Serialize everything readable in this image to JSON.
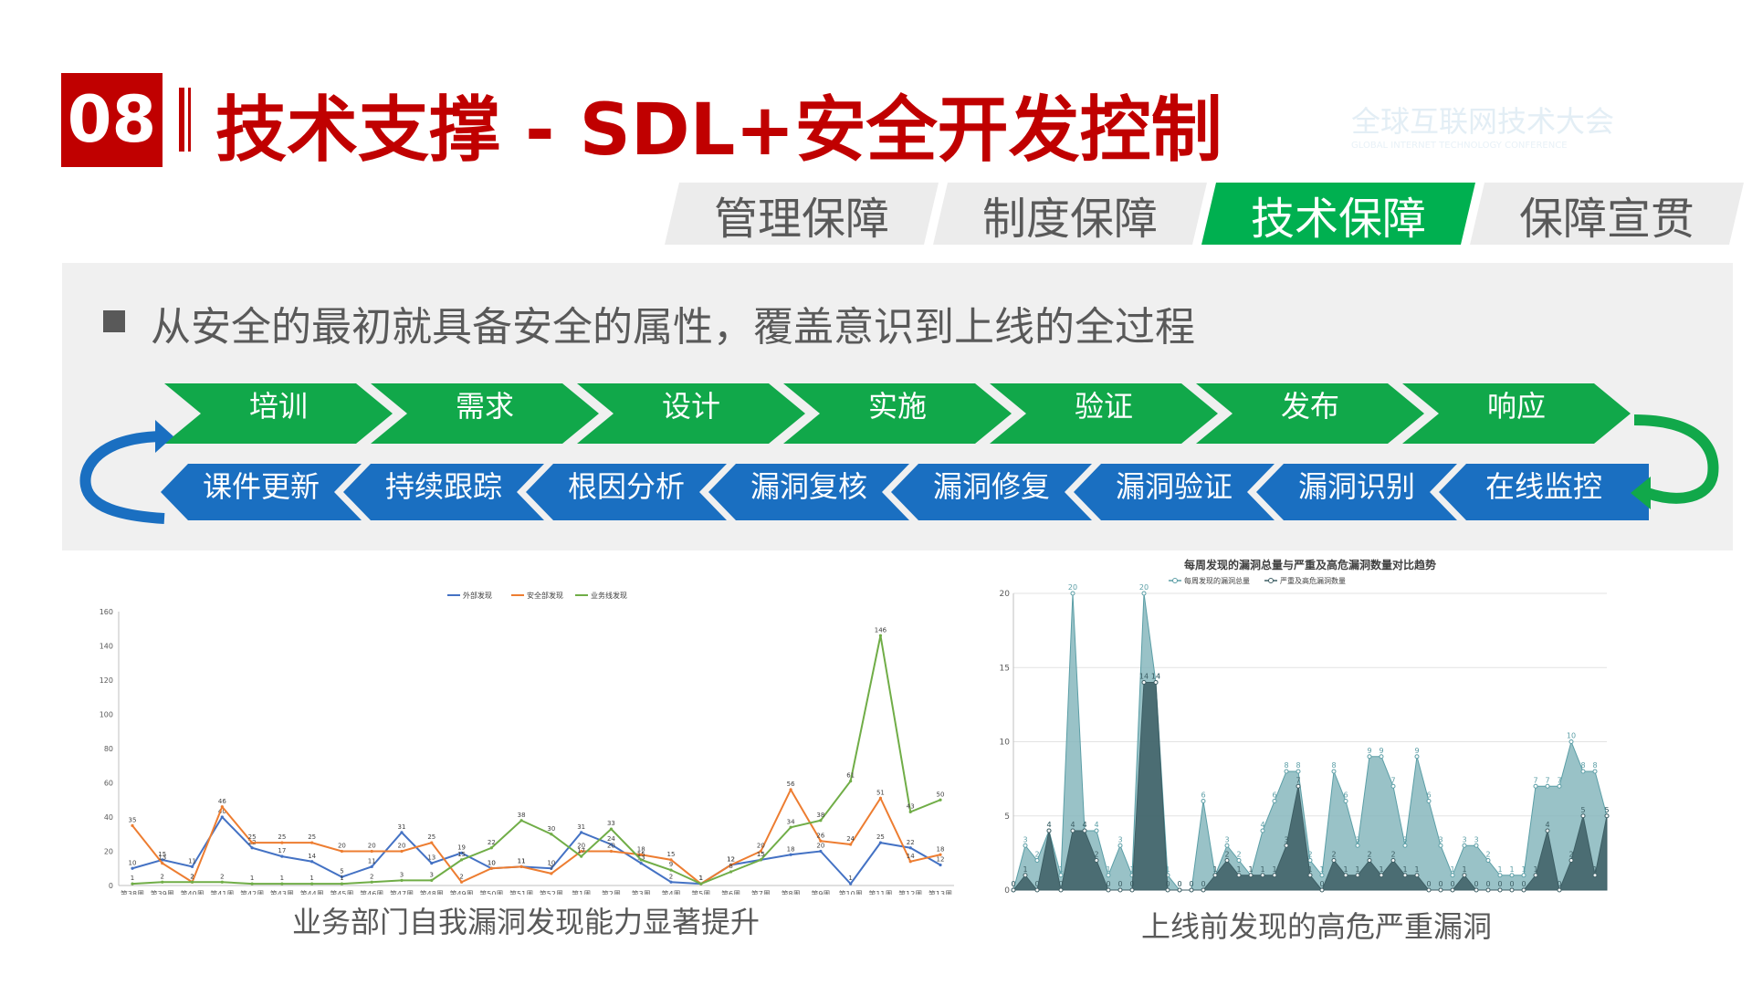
{
  "header": {
    "number": "08",
    "title": "技术支撑 - SDL+安全开发控制",
    "watermark": "全球互联网技术大会",
    "watermark_sub": "GLOBAL INTERNET TECHNOLOGY CONFERENCE"
  },
  "tabs": [
    {
      "label": "管理保障",
      "active": false
    },
    {
      "label": "制度保障",
      "active": false
    },
    {
      "label": "技术保障",
      "active": true
    },
    {
      "label": "保障宣贯",
      "active": false
    }
  ],
  "bullet": "从安全的最初就具备安全的属性，覆盖意识到上线的全过程",
  "flow_top": [
    "培训",
    "需求",
    "设计",
    "实施",
    "验证",
    "发布",
    "响应"
  ],
  "flow_bottom": [
    "课件更新",
    "持续跟踪",
    "根因分析",
    "漏洞复核",
    "漏洞修复",
    "漏洞验证",
    "漏洞识别",
    "在线监控"
  ],
  "colors": {
    "brand_red": "#c00000",
    "green": "#00b050",
    "blue": "#1a6fc1",
    "orange": "#ed7d31",
    "teal": "#5b9ea6"
  },
  "captions": {
    "left": "业务部门自我漏洞发现能力显著提升",
    "right": "上线前发现的高危严重漏洞"
  },
  "chart_data": [
    {
      "type": "line",
      "title": "",
      "xlabel": "",
      "ylabel": "",
      "ylim": [
        0,
        160
      ],
      "yticks": [
        0,
        20,
        40,
        60,
        80,
        100,
        120,
        140,
        160
      ],
      "grid": false,
      "legend_position": "top",
      "categories": [
        "第38周",
        "第39周",
        "第40周",
        "第41周",
        "第42周",
        "第43周",
        "第44周",
        "第45周",
        "第46周",
        "第47周",
        "第48周",
        "第49周",
        "第50周",
        "第51周",
        "第52周",
        "第1周",
        "第2周",
        "第3周",
        "第4周",
        "第5周",
        "第6周",
        "第7周",
        "第8周",
        "第9周",
        "第10周",
        "第11周",
        "第12周",
        "第13周"
      ],
      "series": [
        {
          "name": "外部发现",
          "color": "#4472c4",
          "values": [
            10,
            15,
            11,
            40,
            22,
            17,
            14,
            5,
            11,
            31,
            13,
            19,
            10,
            11,
            10,
            31,
            24,
            13,
            2,
            1,
            12,
            15,
            18,
            20,
            1,
            25,
            22,
            12
          ]
        },
        {
          "name": "安全部发现",
          "color": "#ed7d31",
          "values": [
            35,
            13,
            2,
            46,
            25,
            25,
            25,
            20,
            20,
            20,
            25,
            2,
            10,
            11,
            7,
            20,
            20,
            18,
            15,
            1,
            12,
            20,
            56,
            26,
            24,
            51,
            14,
            18
          ]
        },
        {
          "name": "业务线发现",
          "color": "#70ad47",
          "values": [
            1,
            2,
            2,
            2,
            1,
            1,
            1,
            1,
            2,
            3,
            3,
            15,
            22,
            38,
            30,
            17,
            33,
            15,
            9,
            1,
            8,
            15,
            34,
            38,
            61,
            146,
            43,
            50
          ]
        }
      ]
    },
    {
      "type": "area",
      "title": "每周发现的漏洞总量与严重及高危漏洞数量对比趋势",
      "xlabel": "",
      "ylabel": "",
      "ylim": [
        0,
        20
      ],
      "yticks": [
        0,
        5,
        10,
        15,
        20
      ],
      "grid": true,
      "legend_position": "top",
      "series": [
        {
          "name": "每周发现的漏洞总量",
          "color": "#5b9ea6",
          "values": [
            0,
            3,
            2,
            4,
            1,
            20,
            4,
            4,
            1,
            3,
            1,
            20,
            14,
            1,
            0,
            0,
            6,
            1,
            3,
            2,
            1,
            4,
            6,
            8,
            8,
            2,
            1,
            8,
            6,
            3,
            9,
            9,
            7,
            3,
            9,
            6,
            3,
            1,
            3,
            3,
            2,
            1,
            1,
            1,
            7,
            7,
            7,
            10,
            8,
            8,
            5
          ]
        },
        {
          "name": "严重及高危漏洞数量",
          "color": "#3d5e64",
          "values": [
            0,
            1,
            0,
            4,
            0,
            4,
            4,
            2,
            0,
            0,
            0,
            14,
            14,
            0,
            0,
            0,
            0,
            1,
            2,
            1,
            1,
            1,
            1,
            3,
            7,
            1,
            0,
            2,
            1,
            1,
            2,
            1,
            2,
            1,
            1,
            0,
            0,
            0,
            1,
            0,
            0,
            0,
            0,
            0,
            1,
            4,
            0,
            2,
            5,
            1,
            5
          ]
        }
      ]
    }
  ]
}
